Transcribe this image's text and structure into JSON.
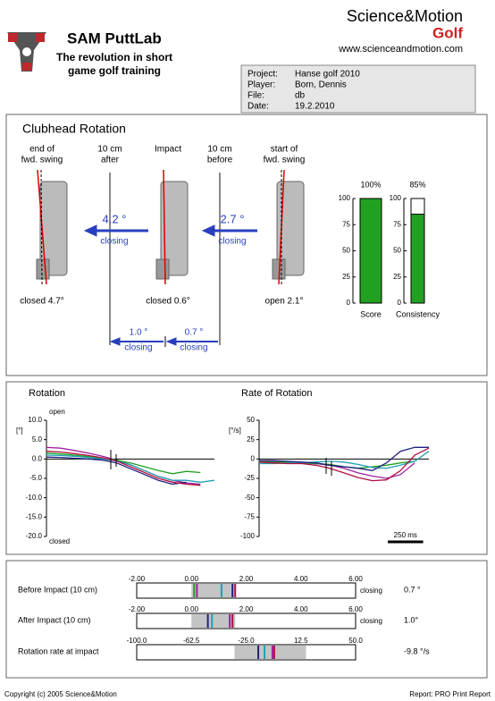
{
  "header": {
    "title": "SAM PuttLab",
    "tagline": [
      "The revolution in short",
      "game golf training"
    ],
    "brand": "Science&Motion",
    "brand_sub": "Golf",
    "url": "www.scienceandmotion.com"
  },
  "info": {
    "rows": [
      [
        "Project:",
        "Hanse golf 2010"
      ],
      [
        "Player:",
        "Born, Dennis"
      ],
      [
        "File:",
        "db"
      ],
      [
        "Date:",
        "19.2.2010"
      ]
    ]
  },
  "clubhead": {
    "title": "Clubhead Rotation",
    "columns": [
      [
        "end of",
        "fwd. swing"
      ],
      [
        "10 cm",
        "after"
      ],
      [
        "Impact"
      ],
      [
        "10 cm",
        "before"
      ],
      [
        "start of",
        "fwd. swing"
      ]
    ],
    "positions": [
      "closed 4.7°",
      "closed 0.6°",
      "open 2.1°"
    ],
    "arrows": [
      {
        "value": "4.2 °",
        "text": "closing"
      },
      {
        "value": "2.7 °",
        "text": "closing"
      },
      {
        "value": "1.0 °",
        "text": "closing"
      },
      {
        "value": "0.7 °",
        "text": "closing"
      }
    ]
  },
  "chart_data": [
    {
      "type": "bar",
      "categories": [
        "Score",
        "Consistency"
      ],
      "values": [
        100,
        85
      ],
      "value_labels": [
        "100%",
        "85%"
      ],
      "color": "#22a022",
      "ylim": [
        0,
        100
      ],
      "yticks": [
        0,
        25,
        50,
        75,
        100
      ]
    },
    {
      "type": "line",
      "title": "Rotation",
      "y_label": "[°]",
      "annotations": [
        "open",
        "closed"
      ],
      "x": [
        0,
        100,
        200,
        300,
        400,
        500,
        600,
        700,
        800,
        900,
        1000,
        1100,
        1200
      ],
      "xlim": [
        0,
        1200
      ],
      "ylim": [
        -20,
        10
      ],
      "yticks": [
        {
          "value": 10,
          "label": "10.0"
        },
        {
          "value": 5,
          "label": "5.0"
        },
        {
          "value": 0,
          "label": "0.0"
        },
        {
          "value": -5,
          "label": "-5.0"
        },
        {
          "value": -10,
          "label": "-10.0"
        },
        {
          "value": -15,
          "label": "-15.0"
        },
        {
          "value": -20,
          "label": "-20.0"
        }
      ],
      "series": [
        {
          "color": "#a020a0",
          "values": [
            3,
            2.8,
            2.2,
            1.5,
            0.7,
            -0.3,
            -1.5,
            -3,
            -4.5,
            -5.5,
            -6.2,
            -6.5,
            null
          ]
        },
        {
          "color": "#20a020",
          "values": [
            1.5,
            1.3,
            1,
            0.6,
            0.2,
            -0.3,
            -1,
            -2,
            -3,
            -3.8,
            -3.2,
            -3.5,
            null
          ]
        },
        {
          "color": "#20a0b0",
          "values": [
            1,
            0.9,
            0.7,
            0.4,
            0,
            -0.5,
            -1.5,
            -3,
            -4.5,
            -5.5,
            -5.5,
            -6,
            -5.5
          ]
        },
        {
          "color": "#202080",
          "values": [
            0.5,
            0.4,
            0.2,
            0,
            -0.3,
            -1,
            -2.5,
            -4,
            -5.5,
            -6.5,
            -6,
            null,
            null
          ]
        },
        {
          "color": "#b01040",
          "values": [
            2,
            1.8,
            1.4,
            0.9,
            0.3,
            -0.5,
            -2,
            -3.5,
            -5,
            -6,
            -6.5,
            -6.8,
            null
          ]
        }
      ]
    },
    {
      "type": "line",
      "title": "Rate of Rotation",
      "y_label": "[°/s]",
      "x": [
        0,
        100,
        200,
        300,
        400,
        500,
        600,
        700,
        800,
        900,
        1000,
        1100,
        1200
      ],
      "xlim": [
        0,
        1200
      ],
      "ylim": [
        -100,
        50
      ],
      "yticks": [
        50,
        25,
        0,
        -25,
        -50,
        -75,
        -100
      ],
      "scale_bar": {
        "value": 250,
        "label": "250 ms"
      },
      "series": [
        {
          "color": "#a020a0",
          "values": [
            -2,
            -3,
            -4,
            -5,
            -6,
            -8,
            -12,
            -18,
            -22,
            -25,
            -20,
            -5,
            null
          ]
        },
        {
          "color": "#20a020",
          "values": [
            -3,
            -4,
            -4,
            -5,
            -6,
            -7,
            -10,
            -12,
            -10,
            -8,
            -5,
            -3,
            null
          ]
        },
        {
          "color": "#20a0b0",
          "values": [
            -6,
            -6,
            -5,
            -5,
            -4,
            -3,
            -4,
            -7,
            -11,
            -12,
            -8,
            -3,
            10
          ]
        },
        {
          "color": "#202080",
          "values": [
            -2,
            -2,
            -3,
            -4,
            -5,
            -8,
            -10,
            -12,
            -15,
            -5,
            10,
            15,
            15
          ]
        },
        {
          "color": "#b01040",
          "values": [
            -4,
            -5,
            -6,
            -6,
            -8,
            -12,
            -18,
            -24,
            -28,
            -27,
            -15,
            5,
            14
          ]
        }
      ]
    },
    {
      "type": "range",
      "title": "Before Impact (10 cm)",
      "end_label": "closing",
      "result": "0.7 °",
      "xlim": [
        -2,
        6
      ],
      "xticks": [
        {
          "value": -2,
          "label": "-2.00"
        },
        {
          "value": 0,
          "label": "0.00"
        },
        {
          "value": 2,
          "label": "2.00"
        },
        {
          "value": 4,
          "label": "4.00"
        },
        {
          "value": 6,
          "label": "6.00"
        }
      ],
      "range": [
        0,
        1.6
      ],
      "values": [
        0.1,
        0.2,
        1.1,
        1.5,
        1.6
      ],
      "colors": [
        "#20a020",
        "#a020a0",
        "#20a0b0",
        "#202080",
        "#b01040"
      ]
    },
    {
      "type": "range",
      "title": "After Impact (10 cm)",
      "end_label": "closing",
      "result": "1.0°",
      "xlim": [
        -2,
        6
      ],
      "xticks": [
        {
          "value": -2,
          "label": "-2.00"
        },
        {
          "value": 0,
          "label": "0.00"
        },
        {
          "value": 2,
          "label": "2.00"
        },
        {
          "value": 4,
          "label": "4.00"
        },
        {
          "value": 6,
          "label": "6.00"
        }
      ],
      "range": [
        0,
        1.6
      ],
      "values": [
        0.6,
        0.75,
        1.4,
        1.5
      ],
      "colors": [
        "#202080",
        "#20a0b0",
        "#a020a0",
        "#b01040"
      ]
    },
    {
      "type": "range",
      "title": "Rotation rate at impact",
      "result": "-9.8 °/s",
      "xlim": [
        -100,
        50
      ],
      "xticks": [
        {
          "value": -100,
          "label": "-100.0"
        },
        {
          "value": -62.5,
          "label": "-62.5"
        },
        {
          "value": -25,
          "label": "-25.0"
        },
        {
          "value": 12.5,
          "label": "12.5"
        },
        {
          "value": 50,
          "label": "50.0"
        }
      ],
      "range": [
        -33,
        16
      ],
      "values": [
        -16.7,
        -12.4,
        -7,
        -5.8
      ],
      "colors": [
        "#202080",
        "#20a0b0",
        "#a020a0",
        "#b01040"
      ]
    }
  ],
  "footer": {
    "copyright": "Copyright (c) 2005 Science&Motion",
    "report": "Report: PRO Print Report"
  }
}
